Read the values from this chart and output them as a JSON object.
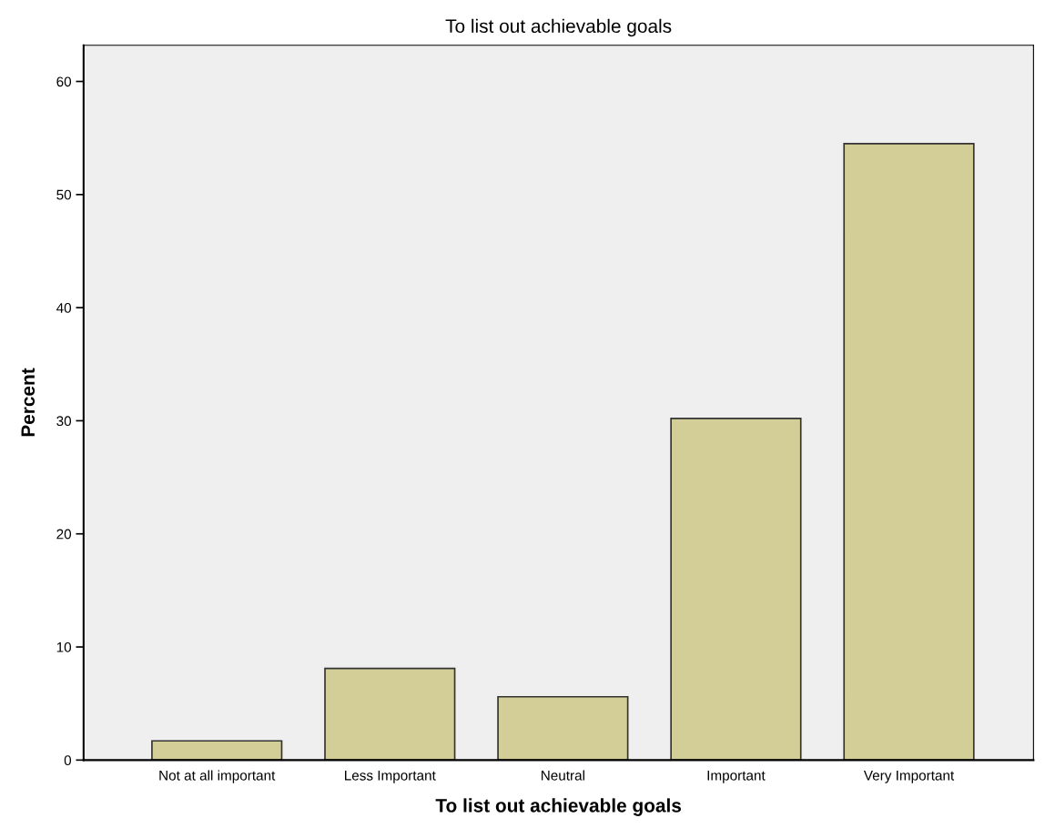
{
  "chart_data": {
    "type": "bar",
    "title": "To list out achievable goals",
    "xlabel": "To list out achievable goals",
    "ylabel": "Percent",
    "categories": [
      "Not at all important",
      "Less Important",
      "Neutral",
      "Important",
      "Very Important"
    ],
    "values": [
      1.7,
      8.1,
      5.6,
      30.2,
      54.5
    ],
    "color": "#d3ce97",
    "ylim": [
      0,
      63.2
    ],
    "yticks": [
      0,
      10,
      20,
      30,
      40,
      50,
      60
    ],
    "grid": false
  }
}
